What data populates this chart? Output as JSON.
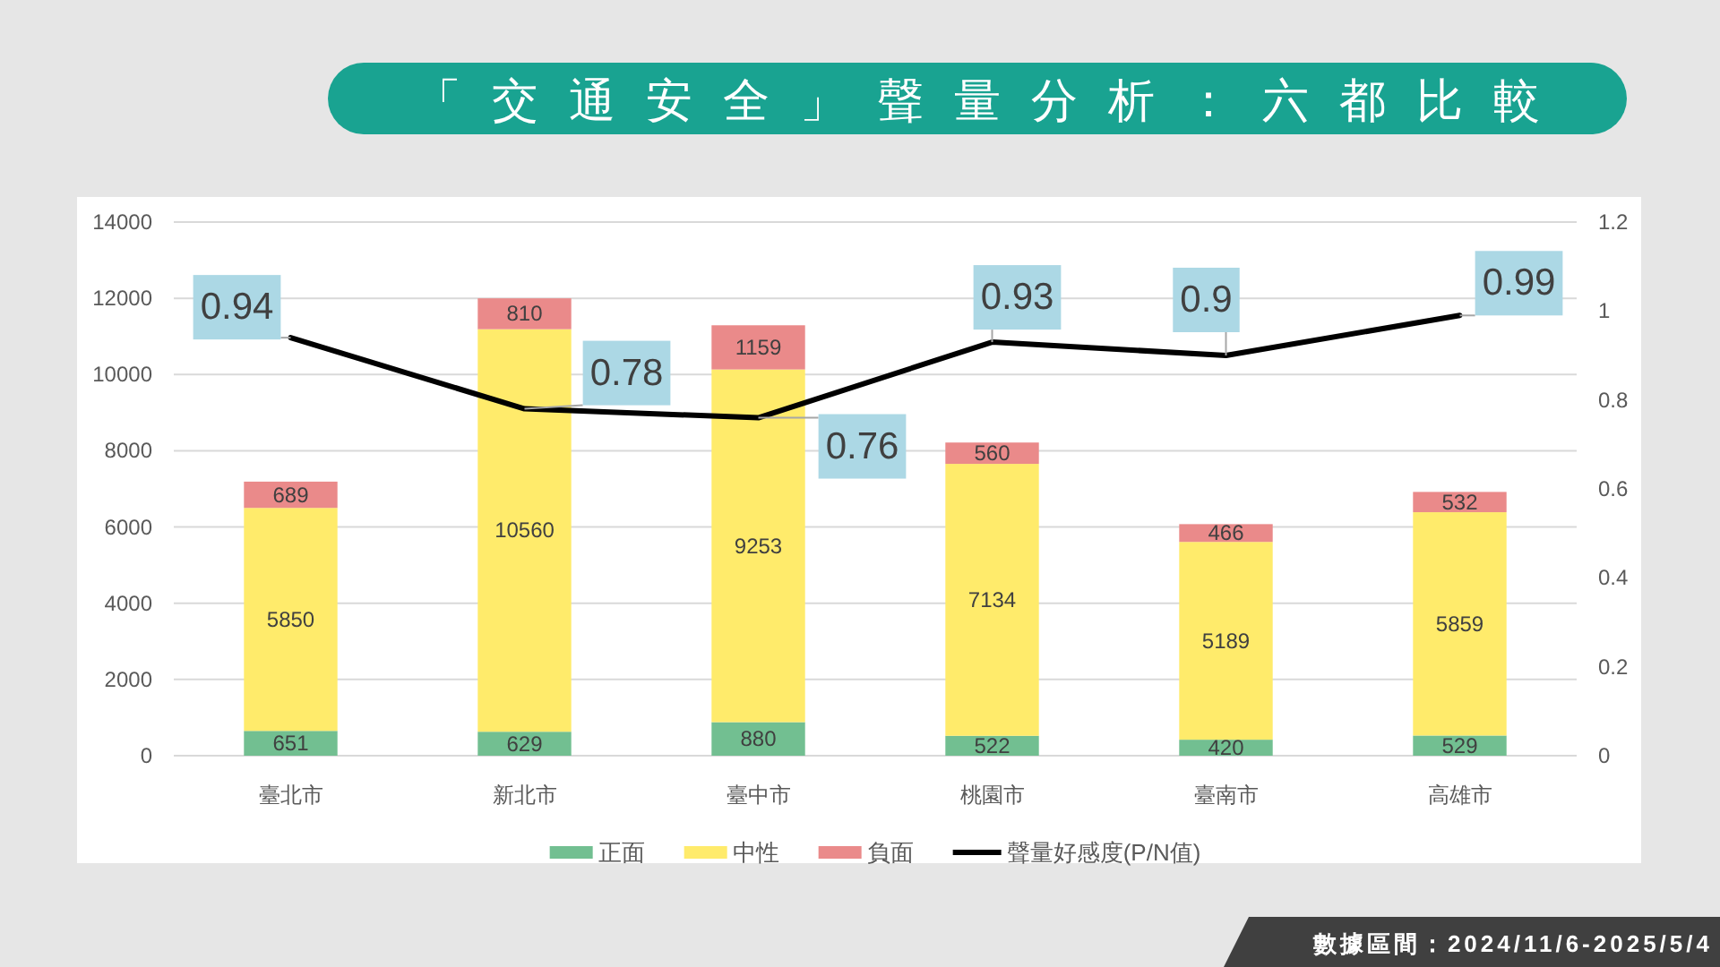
{
  "chart_data": {
    "type": "bar",
    "title": "「交通安全」聲量分析：六都比較",
    "categories": [
      "臺北市",
      "新北市",
      "臺中市",
      "桃園市",
      "臺南市",
      "高雄市"
    ],
    "stacked": true,
    "series": [
      {
        "name": "正面",
        "color": "#72bf91",
        "values": [
          651,
          629,
          880,
          522,
          420,
          529
        ]
      },
      {
        "name": "中性",
        "color": "#ffeb6b",
        "values": [
          5850,
          10560,
          9253,
          7134,
          5189,
          5859
        ]
      },
      {
        "name": "負面",
        "color": "#ea8a8a",
        "values": [
          689,
          810,
          1159,
          560,
          466,
          532
        ]
      },
      {
        "name": "聲量好感度(P/N值)",
        "type": "line",
        "axis": "y2",
        "color": "#000000",
        "values": [
          0.94,
          0.78,
          0.76,
          0.93,
          0.9,
          0.99
        ]
      }
    ],
    "ylim": [
      0,
      14000
    ],
    "yticks": [
      0,
      2000,
      4000,
      6000,
      8000,
      10000,
      12000,
      14000
    ],
    "y2lim": [
      0,
      1.2
    ],
    "y2ticks": [
      0,
      0.2,
      0.4,
      0.6,
      0.8,
      1,
      1.2
    ],
    "grid": "y",
    "legend": "bottom",
    "data_labels": true,
    "annotations": [
      "數據區間：2024/11/6-2025/5/4"
    ]
  }
}
